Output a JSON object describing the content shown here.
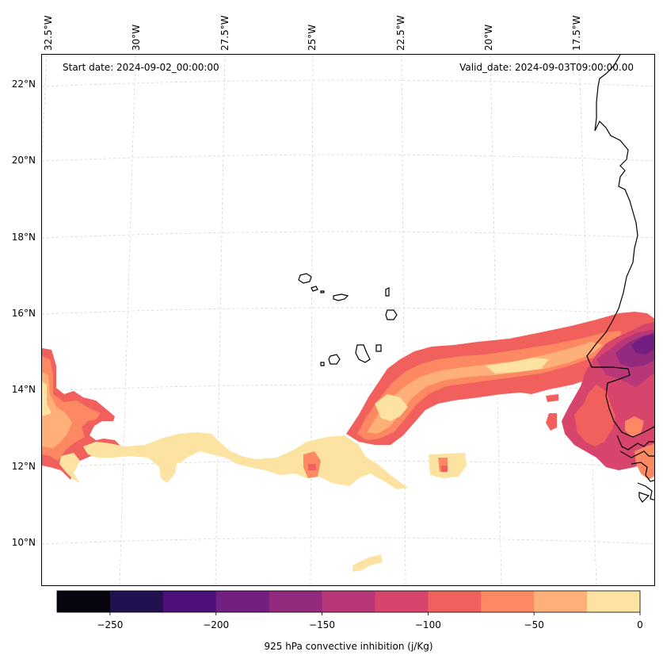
{
  "header": {
    "start_date": "Start date: 2024-09-02_00:00:00",
    "valid_date": "Valid_date: 2024-09-03T09:00:00.00"
  },
  "map": {
    "lon_labels": [
      "32.5°W",
      "30°W",
      "27.5°W",
      "25°W",
      "22.5°W",
      "20°W",
      "17.5°W"
    ],
    "lat_labels": [
      "22°N",
      "20°N",
      "18°N",
      "16°N",
      "14°N",
      "12°N",
      "10°N"
    ]
  },
  "colorbar": {
    "label": "925 hPa convective inhibition (j/Kg)",
    "tick_labels": [
      "−250",
      "−200",
      "−150",
      "−100",
      "−50",
      "0"
    ],
    "colors": [
      "#05040f",
      "#221150",
      "#4c1078",
      "#721f81",
      "#922a7e",
      "#b73779",
      "#d8456c",
      "#f1605d",
      "#fc8961",
      "#feb078",
      "#fde3a1"
    ]
  },
  "chart_data": {
    "type": "contour_map",
    "title": "925 hPa convective inhibition (j/Kg)",
    "start_date": "2024-09-02_00:00:00",
    "valid_date": "2024-09-03T09:00:00.00",
    "lon_range": [
      -33,
      -15
    ],
    "lat_range": [
      9,
      22.5
    ],
    "colorbar_levels": [
      -275,
      -250,
      -225,
      -200,
      -175,
      -150,
      -125,
      -100,
      -75,
      -50,
      -25,
      0
    ],
    "colorbar_ticks": [
      -250,
      -200,
      -150,
      -100,
      -50,
      0
    ]
  }
}
